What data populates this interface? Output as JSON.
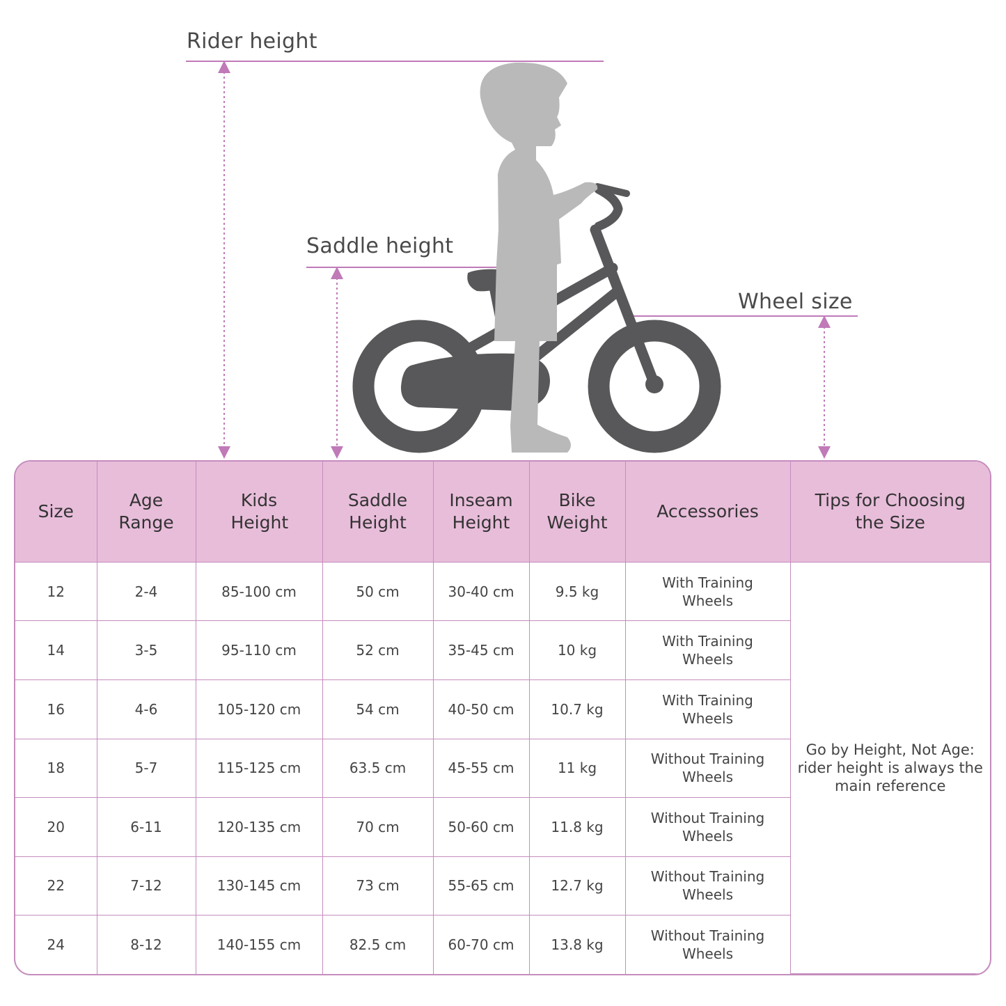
{
  "labels": {
    "rider_height": "Rider height",
    "saddle_height": "Saddle height",
    "wheel_size": "Wheel size"
  },
  "colors": {
    "accent_line": "#c07ab8",
    "header_bg": "#e8bdda",
    "bike": "#58585a",
    "child": "#b9b9b9"
  },
  "table": {
    "headers": [
      "Size",
      "Age Range",
      "Kids Height",
      "Saddle Height",
      "Inseam Height",
      "Bike Weight",
      "Accessories",
      "Tips for Choosing the Size"
    ],
    "rows": [
      [
        "12",
        "2-4",
        "85-100 cm",
        "50 cm",
        "30-40 cm",
        "9.5 kg",
        "With Training Wheels"
      ],
      [
        "14",
        "3-5",
        "95-110 cm",
        "52 cm",
        "35-45 cm",
        "10 kg",
        "With Training Wheels"
      ],
      [
        "16",
        "4-6",
        "105-120 cm",
        "54 cm",
        "40-50 cm",
        "10.7 kg",
        "With Training Wheels"
      ],
      [
        "18",
        "5-7",
        "115-125 cm",
        "63.5 cm",
        "45-55 cm",
        "11 kg",
        "Without Training Wheels"
      ],
      [
        "20",
        "6-11",
        "120-135 cm",
        "70 cm",
        "50-60 cm",
        "11.8 kg",
        "Without Training Wheels"
      ],
      [
        "22",
        "7-12",
        "130-145 cm",
        "73 cm",
        "55-65 cm",
        "12.7 kg",
        "Without Training Wheels"
      ],
      [
        "24",
        "8-12",
        "140-155 cm",
        "82.5 cm",
        "60-70 cm",
        "13.8 kg",
        "Without Training Wheels"
      ]
    ],
    "tip": "Go by Height, Not Age: rider height is always the main reference"
  }
}
